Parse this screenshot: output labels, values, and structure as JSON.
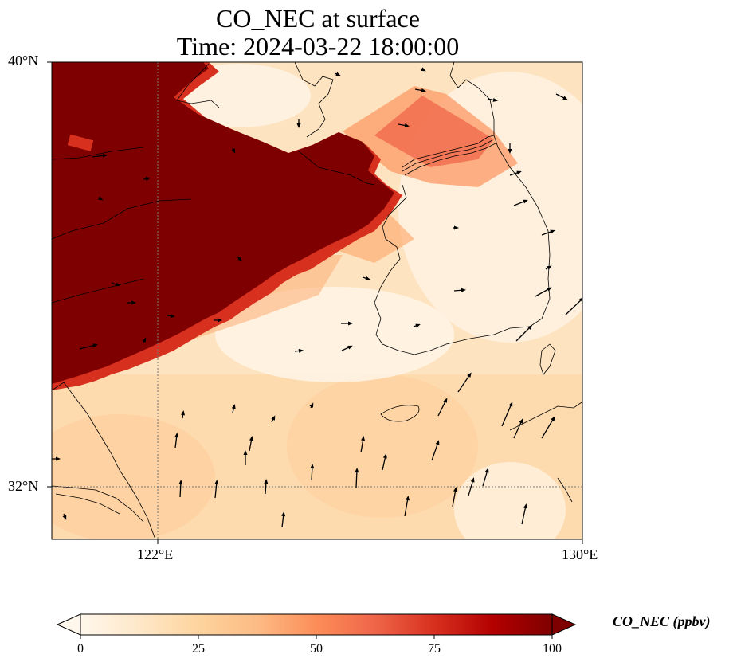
{
  "title": {
    "line1": "CO_NEC at surface",
    "line2": "Time: 2024-03-22 18:00:00"
  },
  "axes": {
    "lat_ticks": [
      "40°N",
      "32°N"
    ],
    "lon_ticks": [
      "122°E",
      "130°E"
    ]
  },
  "map": {
    "lon_range": [
      120,
      130
    ],
    "lat_range": [
      31,
      40
    ],
    "gridlines": "dotted",
    "field": "CO_NEC concentration, saturated (>=100) over eastern China and the Yellow Sea, decreasing to near 0 over Korea and the East China Sea",
    "wind_vectors": "shown"
  },
  "colorbar": {
    "label": "CO_NEC (ppbv)",
    "ticks": [
      "0",
      "25",
      "50",
      "75",
      "100"
    ],
    "range": [
      0,
      100
    ],
    "colormap": "OrRd",
    "extend": "both",
    "colors": [
      "#fff7ec",
      "#fee8c8",
      "#fdd49e",
      "#fdbb84",
      "#fc8d59",
      "#ef6548",
      "#d7301f",
      "#b30000",
      "#7f0000"
    ]
  }
}
